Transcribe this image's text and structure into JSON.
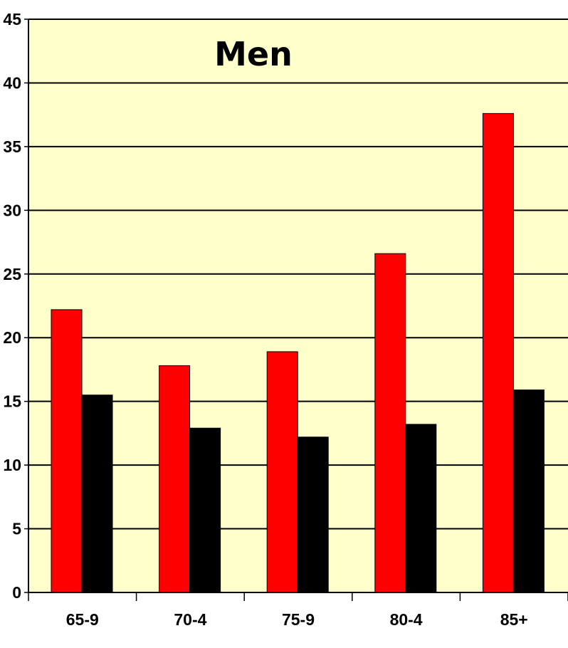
{
  "chart_data": {
    "type": "bar",
    "title": "Men",
    "categories": [
      "65-9",
      "70-4",
      "75-9",
      "80-4",
      "85+"
    ],
    "series": [
      {
        "values": [
          22.2,
          17.8,
          18.9,
          26.6,
          37.6
        ],
        "color": "#ff0000"
      },
      {
        "values": [
          15.5,
          12.9,
          12.2,
          13.2,
          15.9
        ],
        "color": "#000000"
      }
    ],
    "ylim": [
      0,
      45
    ],
    "yticks": [
      0,
      5,
      10,
      15,
      20,
      25,
      30,
      35,
      40,
      45
    ],
    "grid": true,
    "plot_background": "#ffffcc",
    "xlabel": "",
    "ylabel": ""
  }
}
